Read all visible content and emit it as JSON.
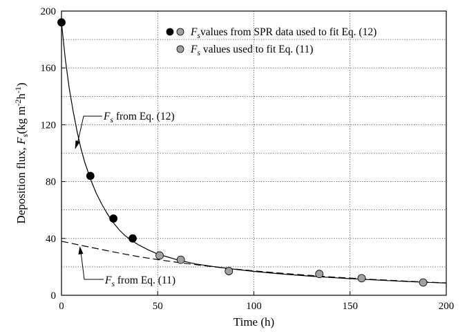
{
  "chart_data": {
    "type": "scatter",
    "xlabel": "Time (h)",
    "ylabel": {
      "prefix": "Deposition flux, ",
      "symbol": "F",
      "symbol_sub": "s",
      "units_open": "(kg m",
      "exp1": "-2",
      "mid": "h",
      "exp2": "-1",
      "units_close": ")"
    },
    "xlim": [
      0,
      200
    ],
    "ylim": [
      0,
      200
    ],
    "x_ticks": [
      "0",
      "50",
      "100",
      "150",
      "200"
    ],
    "y_ticks": [
      "0",
      "40",
      "80",
      "120",
      "160",
      "200"
    ],
    "grid": "dotted",
    "legend_position": "top-right",
    "series": [
      {
        "name": {
          "symbol": "F",
          "sub": "s",
          "text": "values from SPR data used to fit Eq. (12)"
        },
        "marker_colors": [
          "#000000",
          "#a0a0a0"
        ],
        "points": [
          {
            "x": 0,
            "y": 192,
            "color": "#000000"
          },
          {
            "x": 15,
            "y": 84,
            "color": "#000000"
          },
          {
            "x": 27,
            "y": 54,
            "color": "#000000"
          },
          {
            "x": 37,
            "y": 40,
            "color": "#000000"
          }
        ]
      },
      {
        "name": {
          "symbol": "F",
          "sub": "s",
          "text": " values used to fit Eq. (11)"
        },
        "marker_colors": [
          "#a0a0a0"
        ],
        "points": [
          {
            "x": 51,
            "y": 28,
            "color": "#a0a0a0"
          },
          {
            "x": 62,
            "y": 25,
            "color": "#a0a0a0"
          },
          {
            "x": 87,
            "y": 17,
            "color": "#a0a0a0"
          },
          {
            "x": 134,
            "y": 15,
            "color": "#a0a0a0"
          },
          {
            "x": 156,
            "y": 12,
            "color": "#a0a0a0"
          },
          {
            "x": 188,
            "y": 9,
            "color": "#a0a0a0"
          }
        ]
      }
    ],
    "curves": [
      {
        "label": {
          "symbol": "F",
          "sub": "s",
          "text": " from Eq. (12)"
        },
        "style": "solid",
        "points": [
          [
            0,
            192
          ],
          [
            2,
            166
          ],
          [
            4,
            146
          ],
          [
            6,
            130
          ],
          [
            8,
            116
          ],
          [
            10,
            104
          ],
          [
            12,
            94
          ],
          [
            15,
            82
          ],
          [
            18,
            72
          ],
          [
            21,
            64
          ],
          [
            24,
            57
          ],
          [
            27,
            51
          ],
          [
            30,
            46
          ],
          [
            33,
            42
          ],
          [
            36,
            39
          ],
          [
            40,
            35.5
          ],
          [
            45,
            32
          ],
          [
            50,
            29
          ],
          [
            55,
            27
          ],
          [
            60,
            25
          ],
          [
            70,
            22
          ],
          [
            80,
            20
          ],
          [
            90,
            18.3
          ],
          [
            100,
            16.8
          ],
          [
            110,
            15.5
          ],
          [
            120,
            14.4
          ],
          [
            130,
            13.4
          ],
          [
            140,
            12.5
          ],
          [
            150,
            11.7
          ],
          [
            160,
            11
          ],
          [
            170,
            10.3
          ],
          [
            180,
            9.7
          ],
          [
            190,
            9.1
          ],
          [
            200,
            8.6
          ]
        ]
      },
      {
        "label": {
          "symbol": "F",
          "sub": "s",
          "text": " from Eq. (11)"
        },
        "style": "dashed",
        "points": [
          [
            0,
            38
          ],
          [
            10,
            35.2
          ],
          [
            20,
            32.4
          ],
          [
            30,
            29.7
          ],
          [
            40,
            27.2
          ],
          [
            50,
            25.1
          ],
          [
            60,
            23.2
          ],
          [
            70,
            21.5
          ],
          [
            80,
            19.9
          ],
          [
            90,
            18.5
          ],
          [
            100,
            17.2
          ],
          [
            110,
            16
          ],
          [
            120,
            14.9
          ],
          [
            130,
            13.9
          ],
          [
            140,
            12.9
          ],
          [
            150,
            12.1
          ],
          [
            160,
            11.3
          ],
          [
            170,
            10.6
          ],
          [
            180,
            9.9
          ],
          [
            190,
            9.3
          ],
          [
            200,
            8.7
          ]
        ]
      }
    ]
  }
}
